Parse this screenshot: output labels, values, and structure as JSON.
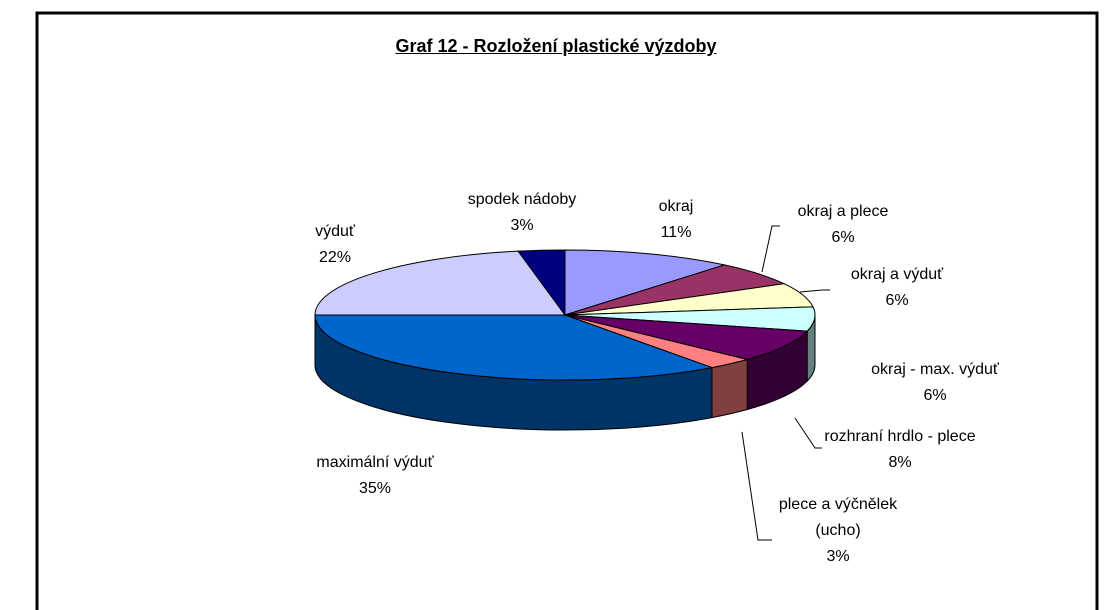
{
  "chart_data": {
    "type": "pie",
    "title": "Graf 12 - Rozložení plastické výzdoby",
    "categories": [
      "okraj",
      "okraj a plece",
      "okraj a výduť",
      "okraj - max. výduť",
      "rozhraní hrdlo - plece",
      "plece a výčnělek (ucho)",
      "maximální výduť",
      "výduť",
      "spodek nádoby"
    ],
    "values": [
      11,
      6,
      6,
      6,
      8,
      3,
      35,
      22,
      3
    ],
    "value_labels": [
      "11%",
      "6%",
      "6%",
      "6%",
      "8%",
      "3%",
      "35%",
      "22%",
      "3%"
    ],
    "colors": [
      "#9999ff",
      "#993366",
      "#ffffcc",
      "#ccffff",
      "#660066",
      "#ff8080",
      "#0066cc",
      "#ccccff",
      "#000080"
    ]
  }
}
